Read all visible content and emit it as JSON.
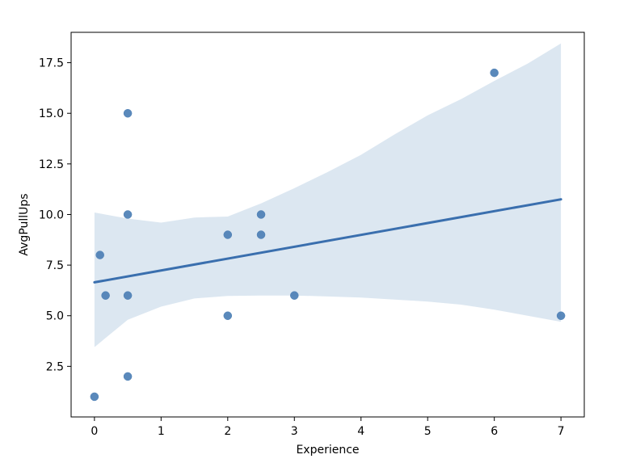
{
  "chart_data": {
    "type": "scatter",
    "title": "",
    "xlabel": "Experience",
    "ylabel": "AvgPullUps",
    "xlim": [
      -0.35,
      7.35
    ],
    "ylim": [
      0.0,
      19.0
    ],
    "xticks": [
      0,
      1,
      2,
      3,
      4,
      5,
      6,
      7
    ],
    "xtick_labels": [
      "0",
      "1",
      "2",
      "3",
      "4",
      "5",
      "6",
      "7"
    ],
    "yticks": [
      2.5,
      5.0,
      7.5,
      10.0,
      12.5,
      15.0,
      17.5
    ],
    "ytick_labels": [
      "2.5",
      "5.0",
      "7.5",
      "10.0",
      "12.5",
      "15.0",
      "17.5"
    ],
    "grid": false,
    "colors": {
      "points": "#4c7fb5",
      "line": "#3a6fae",
      "band": "#dce7f1"
    },
    "points": [
      {
        "x": 0.0,
        "y": 1.0
      },
      {
        "x": 0.083,
        "y": 8.0
      },
      {
        "x": 0.167,
        "y": 6.0
      },
      {
        "x": 0.5,
        "y": 15.0
      },
      {
        "x": 0.5,
        "y": 10.0
      },
      {
        "x": 0.5,
        "y": 6.0
      },
      {
        "x": 0.5,
        "y": 2.0
      },
      {
        "x": 2.0,
        "y": 9.0
      },
      {
        "x": 2.0,
        "y": 5.0
      },
      {
        "x": 2.5,
        "y": 10.0
      },
      {
        "x": 2.5,
        "y": 9.0
      },
      {
        "x": 3.0,
        "y": 6.0
      },
      {
        "x": 6.0,
        "y": 17.0
      },
      {
        "x": 7.0,
        "y": 5.0
      }
    ],
    "regression": {
      "x": [
        0.0,
        7.0
      ],
      "y": [
        6.65,
        10.75
      ]
    },
    "confidence_band": {
      "x": [
        0.0,
        0.5,
        1.0,
        1.5,
        2.0,
        2.5,
        3.0,
        3.5,
        4.0,
        4.5,
        5.0,
        5.5,
        6.0,
        6.5,
        7.0
      ],
      "upper": [
        10.1,
        9.8,
        9.6,
        9.85,
        9.9,
        10.55,
        11.3,
        12.1,
        12.95,
        13.95,
        14.9,
        15.7,
        16.6,
        17.45,
        18.45
      ],
      "lower": [
        3.45,
        4.8,
        5.45,
        5.85,
        5.98,
        6.0,
        6.0,
        5.95,
        5.9,
        5.8,
        5.7,
        5.55,
        5.3,
        5.0,
        4.7
      ]
    }
  }
}
